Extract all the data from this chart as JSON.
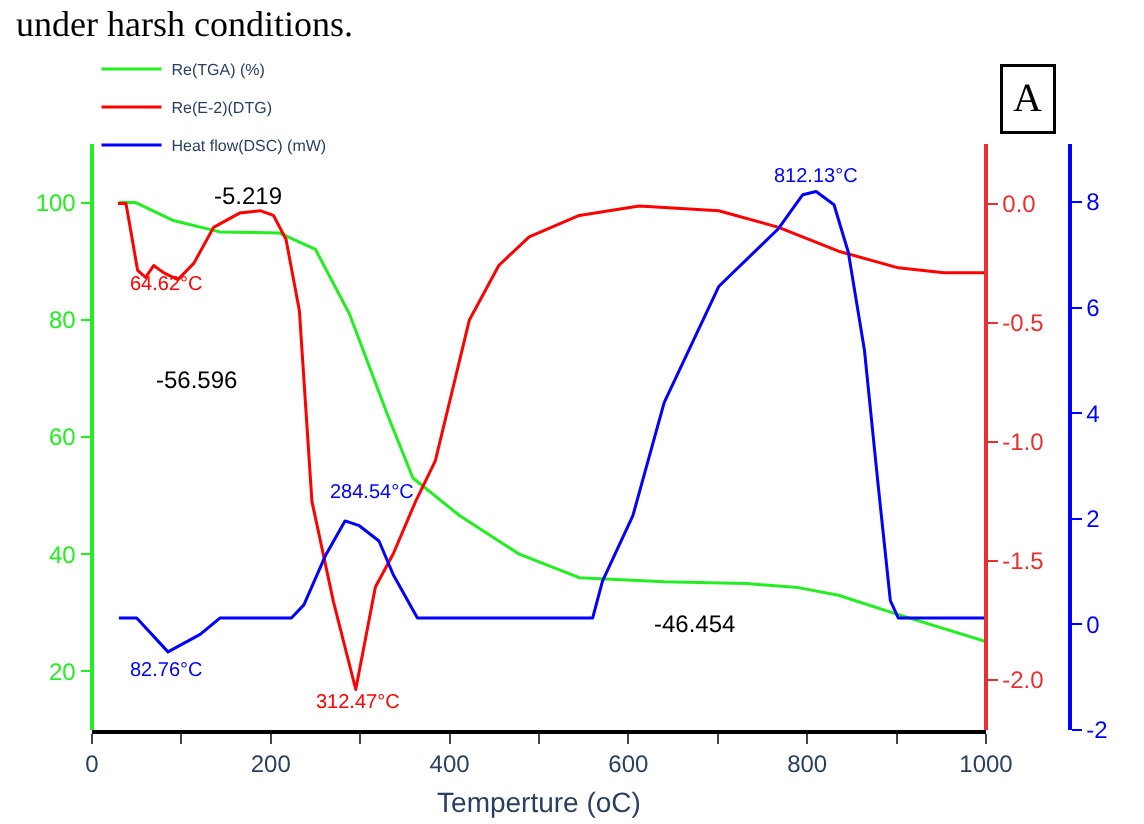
{
  "chart_data": {
    "type": "line",
    "xlabel": "Temperture (oC)",
    "xlim": [
      0,
      1000
    ],
    "xticks": [
      0,
      {
        "value": 100,
        "label": null
      },
      200,
      {
        "value": 300,
        "label": null
      },
      400,
      {
        "value": 500,
        "label": null
      },
      600,
      {
        "value": 700,
        "label": null
      },
      800,
      {
        "value": 900,
        "label": null
      },
      1000
    ],
    "ylim": [
      10,
      110
    ],
    "yticks": [
      20,
      40,
      60,
      80,
      100
    ],
    "y2lim": [
      -2.21,
      0.25
    ],
    "y2ticks": [
      {
        "value": -2.0,
        "label": "-2.0"
      },
      -1.5,
      {
        "value": -1.0,
        "label": "-1.0"
      },
      -0.5,
      {
        "value": 0.0,
        "label": "0.0"
      }
    ],
    "y3lim": [
      -2,
      9.1
    ],
    "y3ticks": [
      -2,
      0,
      2,
      4,
      6,
      8
    ],
    "legend": "top left",
    "marker": "none",
    "line_style": "solid",
    "series": [
      {
        "name": "Re(TGA) (%)",
        "color": "#22ee22",
        "axis": "y",
        "x": [
          30,
          49,
          90,
          143,
          210,
          250,
          288,
          330,
          359,
          411,
          478,
          545,
          640,
          732,
          790,
          835,
          902,
          1000
        ],
        "values": [
          100,
          100,
          97,
          95,
          94.8,
          92,
          81,
          64,
          53,
          46.6,
          40,
          36,
          35.3,
          35,
          34.3,
          33,
          29.7,
          25.1
        ]
      },
      {
        "name": "Re(E-2)(DTG)",
        "color": "#ff0000",
        "axis": "y2",
        "x": [
          29,
          38,
          45,
          51,
          60,
          69,
          80,
          96,
          114,
          136,
          165,
          188,
          203,
          217,
          232,
          246,
          270,
          295,
          317,
          337,
          362,
          384,
          404,
          422,
          455,
          489,
          545,
          612,
          701,
          768,
          835,
          902,
          953,
          1000
        ],
        "values": [
          0.0,
          0.0,
          -0.15,
          -0.28,
          -0.31,
          -0.26,
          -0.29,
          -0.32,
          -0.25,
          -0.1,
          -0.04,
          -0.03,
          -0.05,
          -0.15,
          -0.45,
          -1.25,
          -1.67,
          -2.04,
          -1.61,
          -1.47,
          -1.25,
          -1.08,
          -0.77,
          -0.49,
          -0.26,
          -0.14,
          -0.05,
          -0.01,
          -0.03,
          -0.1,
          -0.2,
          -0.27,
          -0.29,
          -0.29
        ]
      },
      {
        "name": "Heat flow(DSC) (mW)",
        "color": "#0000ff",
        "axis": "y3",
        "x": [
          30,
          50,
          85,
          121,
          143,
          223,
          237,
          261,
          283,
          299,
          321,
          337,
          364,
          560,
          571,
          605,
          640,
          701,
          768,
          795,
          810,
          830,
          846,
          864,
          879,
          893,
          902,
          1000
        ],
        "values": [
          0.12,
          0.12,
          -0.52,
          -0.19,
          0.12,
          0.12,
          0.37,
          1.3,
          1.96,
          1.87,
          1.58,
          0.94,
          0.12,
          0.12,
          0.82,
          2.06,
          4.2,
          6.4,
          7.5,
          8.14,
          8.2,
          7.95,
          7.05,
          5.2,
          2.7,
          0.45,
          0.12,
          0.12
        ]
      }
    ],
    "annotations": [
      "-5.219",
      "-56.596",
      "-46.454",
      "64.62°C",
      "82.76°C",
      "312.47°C",
      "284.54°C",
      "812.13°C",
      "under harsh conditions.",
      "A"
    ]
  }
}
